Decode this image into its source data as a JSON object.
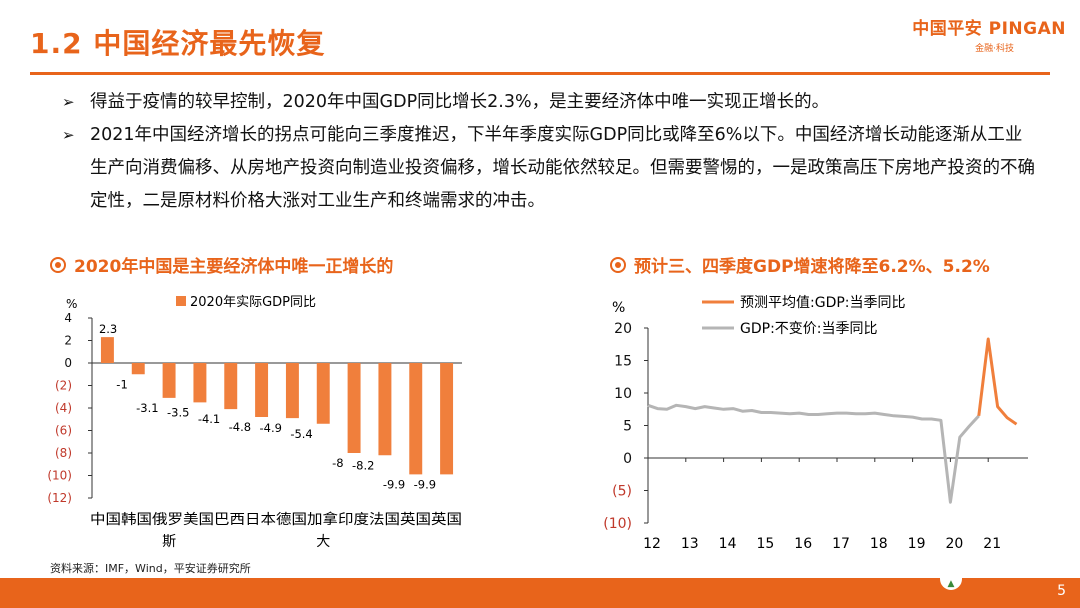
{
  "header": {
    "title": "1.2 中国经济最先恢复",
    "logo_main": "中国平安 PINGAN",
    "logo_tag": "金融·科技"
  },
  "bullets": [
    {
      "mark": "➢",
      "text": "得益于疫情的较早控制，2020年中国GDP同比增长2.3%，是主要经济体中唯一实现正增长的。"
    },
    {
      "mark": "➢",
      "text": "2021年中国经济增长的拐点可能向三季度推迟，下半年季度实际GDP同比或降至6%以下。中国经济增长动能逐渐从工业生产向消费偏移、从房地产投资向制造业投资偏移，增长动能依然较足。但需要警惕的，一是政策高压下房地产投资的不确定性，二是原材料价格大涨对工业生产和终端需求的冲击。"
    }
  ],
  "colors": {
    "accent": "#e8641b",
    "bar": "#f07f3c",
    "grey_line": "#b5b5b5",
    "neg_tick": "#c0392b"
  },
  "chart_data": [
    {
      "type": "bar",
      "title": "2020年中国是主要经济体中唯一正增长的",
      "ylabel": "%",
      "legend": "2020年实际GDP同比",
      "legend_position": "top-center",
      "categories": [
        "中国",
        "韩国",
        "俄罗斯",
        "美国",
        "巴西",
        "日本",
        "德国",
        "加拿大",
        "印度",
        "法国",
        "英国",
        "英国"
      ],
      "values": [
        2.3,
        -1,
        -3.1,
        -3.5,
        -4.1,
        -4.8,
        -4.9,
        -5.4,
        -8,
        -8.2,
        -9.9,
        -9.9
      ],
      "value_labels": [
        "2.3",
        "-1",
        "-3.1",
        "-3.5",
        "-4.1",
        "-4.8",
        "-4.9",
        "-5.4",
        "-8",
        "-8.2",
        "-9.9",
        "-9.9"
      ],
      "yticks": [
        4,
        2,
        0,
        -2,
        -4,
        -6,
        -8,
        -10,
        -12
      ],
      "ytick_labels": [
        "4",
        "2",
        "0",
        "(2)",
        "(4)",
        "(6)",
        "(8)",
        "(10)",
        "(12)"
      ],
      "ylim": [
        -12,
        4
      ],
      "x_axis_text": "中国韩国俄罗美国巴西日本德国加拿印度法国英国英国",
      "x_axis_wrap": [
        "斯",
        "大"
      ]
    },
    {
      "type": "line",
      "title": "预计三、四季度GDP增速将降至6.2%、5.2%",
      "ylabel": "%",
      "ylim": [
        -10,
        20
      ],
      "yticks": [
        20,
        15,
        10,
        5,
        0,
        -5,
        -10
      ],
      "ytick_labels": [
        "20",
        "15",
        "10",
        "5",
        "0",
        "(5)",
        "(10)"
      ],
      "xticks": [
        "12",
        "13",
        "14",
        "15",
        "16",
        "17",
        "18",
        "19",
        "20",
        "21"
      ],
      "x_start": 2012.0,
      "series": [
        {
          "name": "GDP:不变价:当季同比",
          "color": "#b5b5b5",
          "x": [
            2012.0,
            2012.25,
            2012.5,
            2012.75,
            2013.0,
            2013.25,
            2013.5,
            2013.75,
            2014.0,
            2014.25,
            2014.5,
            2014.75,
            2015.0,
            2015.25,
            2015.5,
            2015.75,
            2016.0,
            2016.25,
            2016.5,
            2016.75,
            2017.0,
            2017.25,
            2017.5,
            2017.75,
            2018.0,
            2018.25,
            2018.5,
            2018.75,
            2019.0,
            2019.25,
            2019.5,
            2019.75,
            2020.0,
            2020.25,
            2020.5,
            2020.75
          ],
          "y": [
            8.1,
            7.6,
            7.5,
            8.1,
            7.9,
            7.6,
            7.9,
            7.7,
            7.5,
            7.6,
            7.2,
            7.3,
            7.0,
            7.0,
            6.9,
            6.8,
            6.9,
            6.7,
            6.7,
            6.8,
            6.9,
            6.9,
            6.8,
            6.8,
            6.9,
            6.7,
            6.5,
            6.4,
            6.3,
            6.0,
            6.0,
            5.8,
            -6.8,
            3.2,
            4.9,
            6.5
          ]
        },
        {
          "name": "预测平均值:GDP:当季同比",
          "color": "#f07f3c",
          "x": [
            2020.75,
            2021.0,
            2021.25,
            2021.5,
            2021.75
          ],
          "y": [
            6.5,
            18.3,
            7.9,
            6.2,
            5.2
          ]
        }
      ]
    }
  ],
  "source": "资料来源：IMF，Wind，平安证券研究所",
  "footer": {
    "page_number": "5"
  }
}
